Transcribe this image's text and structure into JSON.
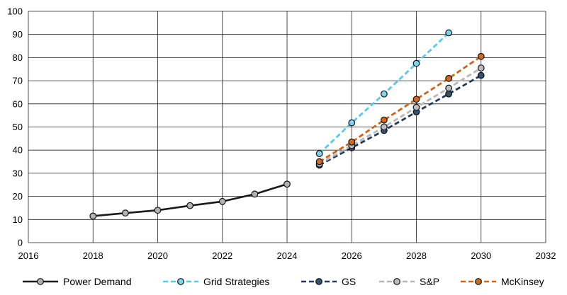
{
  "chart_data": {
    "type": "line",
    "title": "",
    "xlabel": "",
    "ylabel": "",
    "xlim": [
      2016,
      2032
    ],
    "ylim": [
      0,
      100
    ],
    "x_ticks": [
      2016,
      2018,
      2020,
      2022,
      2024,
      2026,
      2028,
      2030,
      2032
    ],
    "y_ticks": [
      0,
      10,
      20,
      30,
      40,
      50,
      60,
      70,
      80,
      90,
      100
    ],
    "x_tick_labels": [
      "2016",
      "2018",
      "2020",
      "2022",
      "2024",
      "2026",
      "2028",
      "2030",
      "2032"
    ],
    "y_tick_labels": [
      "0",
      "10",
      "20",
      "30",
      "40",
      "50",
      "60",
      "70",
      "80",
      "90",
      "100"
    ],
    "grid": true,
    "legend_position": "bottom",
    "series": [
      {
        "name": "Power Demand",
        "color": "#1a1a1a",
        "marker_color": "#b3b3b3",
        "dashed": false,
        "x": [
          2018,
          2019,
          2020,
          2021,
          2022,
          2023,
          2024
        ],
        "y": [
          11.5,
          12.8,
          14.0,
          16.0,
          17.8,
          21.0,
          25.3
        ]
      },
      {
        "name": "Grid Strategies",
        "color": "#5bc8e8",
        "marker_color": "#7fd3ee",
        "dashed": true,
        "x": [
          2025,
          2026,
          2027,
          2028,
          2029
        ],
        "y": [
          38.5,
          51.8,
          64.3,
          77.5,
          90.7
        ]
      },
      {
        "name": "GS",
        "color": "#22395a",
        "marker_color": "#34506f",
        "dashed": true,
        "x": [
          2025,
          2026,
          2027,
          2028,
          2029,
          2030
        ],
        "y": [
          33.5,
          41.0,
          48.5,
          56.5,
          64.3,
          72.3
        ]
      },
      {
        "name": "S&P",
        "color": "#b8b8b8",
        "marker_color": "#bdbdbd",
        "dashed": true,
        "x": [
          2025,
          2026,
          2027,
          2028,
          2029,
          2030
        ],
        "y": [
          34.0,
          42.0,
          50.0,
          58.5,
          66.8,
          75.5
        ]
      },
      {
        "name": "McKinsey",
        "color": "#c9651c",
        "marker_color": "#cf6a22",
        "dashed": true,
        "x": [
          2025,
          2026,
          2027,
          2028,
          2029,
          2030
        ],
        "y": [
          35.0,
          43.5,
          53.0,
          62.0,
          71.0,
          80.5
        ]
      }
    ]
  }
}
